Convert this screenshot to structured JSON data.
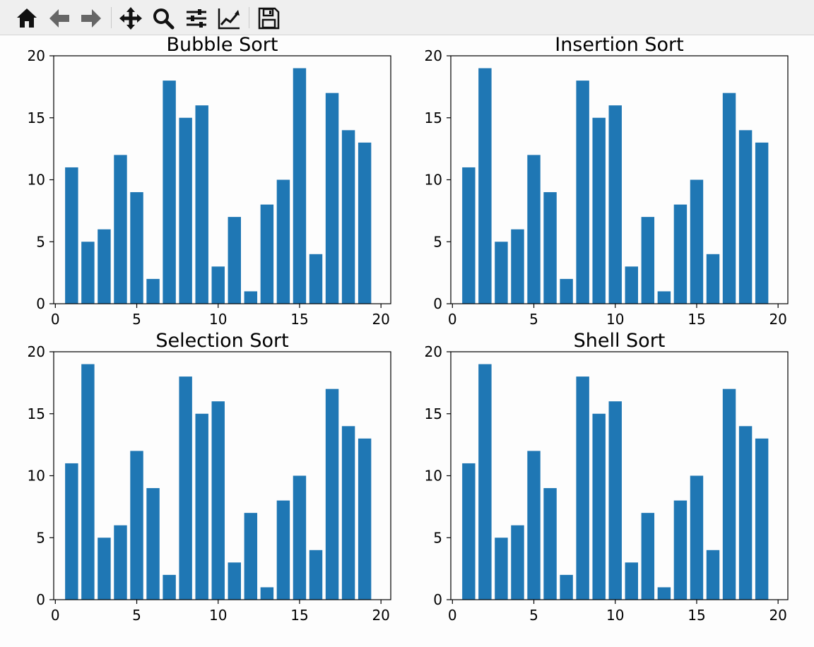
{
  "toolbar": {
    "buttons": [
      {
        "name": "home-button",
        "icon": "home-icon"
      },
      {
        "name": "back-button",
        "icon": "back-arrow-icon"
      },
      {
        "name": "forward-button",
        "icon": "forward-arrow-icon"
      },
      {
        "name": "pan-button",
        "icon": "move-icon"
      },
      {
        "name": "zoom-button",
        "icon": "zoom-icon"
      },
      {
        "name": "configure-subplots-button",
        "icon": "sliders-icon"
      },
      {
        "name": "edit-axis-button",
        "icon": "line-chart-icon"
      },
      {
        "name": "save-button",
        "icon": "floppy-disk-icon"
      }
    ]
  },
  "colors": {
    "bar": "#1f77b4",
    "background": "#fdfdfd",
    "toolbar": "#efefef"
  },
  "chart_data": [
    {
      "type": "bar",
      "title": "Bubble Sort",
      "x": [
        1,
        2,
        3,
        4,
        5,
        6,
        7,
        8,
        9,
        10,
        11,
        12,
        13,
        14,
        15,
        16,
        17,
        18,
        19
      ],
      "values": [
        11,
        5,
        6,
        12,
        9,
        2,
        18,
        15,
        16,
        3,
        7,
        1,
        8,
        10,
        19,
        4,
        17,
        14,
        13
      ],
      "xlim": [
        -0.1,
        20.6
      ],
      "ylim": [
        0,
        20
      ],
      "xticks": [
        0,
        5,
        10,
        15,
        20
      ],
      "yticks": [
        0,
        5,
        10,
        15,
        20
      ],
      "grid": false
    },
    {
      "type": "bar",
      "title": "Insertion Sort",
      "x": [
        1,
        2,
        3,
        4,
        5,
        6,
        7,
        8,
        9,
        10,
        11,
        12,
        13,
        14,
        15,
        16,
        17,
        18,
        19
      ],
      "values": [
        11,
        19,
        5,
        6,
        12,
        9,
        2,
        18,
        15,
        16,
        3,
        7,
        1,
        8,
        10,
        4,
        17,
        14,
        13
      ],
      "xlim": [
        -0.1,
        20.6
      ],
      "ylim": [
        0,
        20
      ],
      "xticks": [
        0,
        5,
        10,
        15,
        20
      ],
      "yticks": [
        0,
        5,
        10,
        15,
        20
      ],
      "grid": false
    },
    {
      "type": "bar",
      "title": "Selection Sort",
      "x": [
        1,
        2,
        3,
        4,
        5,
        6,
        7,
        8,
        9,
        10,
        11,
        12,
        13,
        14,
        15,
        16,
        17,
        18,
        19
      ],
      "values": [
        11,
        19,
        5,
        6,
        12,
        9,
        2,
        18,
        15,
        16,
        3,
        7,
        1,
        8,
        10,
        4,
        17,
        14,
        13
      ],
      "xlim": [
        -0.1,
        20.6
      ],
      "ylim": [
        0,
        20
      ],
      "xticks": [
        0,
        5,
        10,
        15,
        20
      ],
      "yticks": [
        0,
        5,
        10,
        15,
        20
      ],
      "grid": false
    },
    {
      "type": "bar",
      "title": "Shell Sort",
      "x": [
        1,
        2,
        3,
        4,
        5,
        6,
        7,
        8,
        9,
        10,
        11,
        12,
        13,
        14,
        15,
        16,
        17,
        18,
        19
      ],
      "values": [
        11,
        19,
        5,
        6,
        12,
        9,
        2,
        18,
        15,
        16,
        3,
        7,
        1,
        8,
        10,
        4,
        17,
        14,
        13
      ],
      "xlim": [
        -0.1,
        20.6
      ],
      "ylim": [
        0,
        20
      ],
      "xticks": [
        0,
        5,
        10,
        15,
        20
      ],
      "yticks": [
        0,
        5,
        10,
        15,
        20
      ],
      "grid": false
    }
  ]
}
